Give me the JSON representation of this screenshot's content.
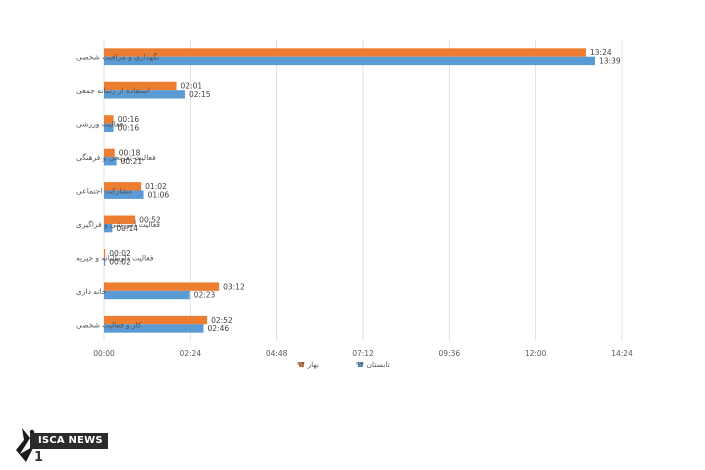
{
  "chart_data": {
    "type": "bar",
    "orientation": "horizontal",
    "categories": [
      "نگهداری و مراقبت شخصی",
      "استفاده از رسانه جمعی",
      "فعالیت ورزشی",
      "فعالیت تفریحی و فرهنگی",
      "مشارکت اجتماعی",
      "فعالیت آموزشی و فراگیری",
      "فعالیت داوطلبانه و خیریه",
      "خانه داری",
      "کار و فعالیت شخصی"
    ],
    "series": [
      {
        "name": "بهار ۹۴",
        "color": "#ED7D31",
        "values": [
          804,
          121,
          16,
          18,
          62,
          52,
          2,
          192,
          172
        ],
        "labels": [
          "13:24",
          "02:01",
          "00:16",
          "00:18",
          "01:02",
          "00:52",
          "00:02",
          "03:12",
          "02:52"
        ]
      },
      {
        "name": "تابستان ۹۴",
        "color": "#5B9BD5",
        "values": [
          819,
          135,
          16,
          21,
          66,
          14,
          2,
          143,
          166
        ],
        "labels": [
          "13:39",
          "02:15",
          "00:16",
          "00:21",
          "01:06",
          "00:14",
          "00:02",
          "02:23",
          "02:46"
        ]
      }
    ],
    "xlim": [
      0,
      864
    ],
    "xticks": [
      0,
      144,
      288,
      432,
      576,
      720,
      864
    ],
    "xtick_labels": [
      "00:00",
      "02:24",
      "04:48",
      "07:12",
      "09:36",
      "12:00",
      "14:24"
    ],
    "grid": true,
    "legend_position": "bottom-center"
  },
  "watermark": {
    "brand": "ISCA NEWS",
    "number": "1"
  }
}
